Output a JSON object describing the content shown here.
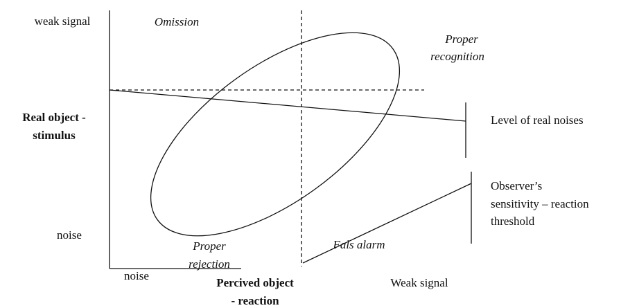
{
  "y_axis": {
    "top": "weak signal",
    "bottom": "noise",
    "title": [
      "Real object -",
      "stimulus"
    ]
  },
  "x_axis": {
    "left": "noise",
    "right": "Weak signal",
    "title": [
      "Percived object",
      "- reaction"
    ]
  },
  "regions": {
    "omission": "Omission",
    "proper_recognition": [
      "Proper",
      "recognition"
    ],
    "false_alarm": "Fals alarm",
    "proper_rejection": [
      "Proper",
      "rejection"
    ]
  },
  "legend": {
    "noise_level": "Level of real noises",
    "sensitivity": [
      "Observer’s",
      "sensitivity – reaction",
      "threshold"
    ]
  }
}
